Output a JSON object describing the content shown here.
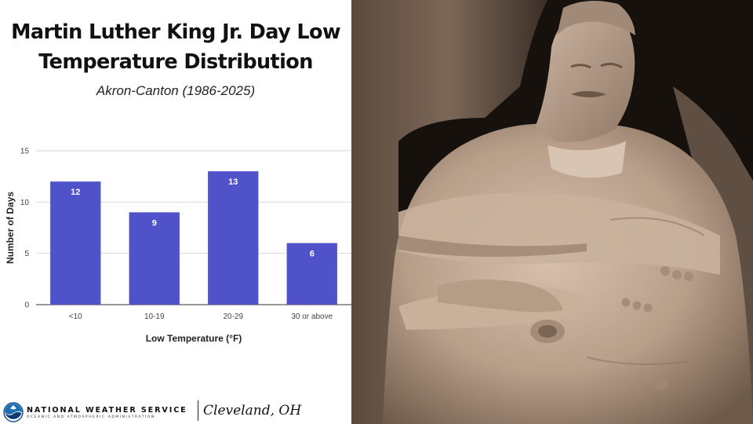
{
  "header": {
    "title_line1": "Martin Luther King Jr. Day Low",
    "title_line2": "Temperature Distribution",
    "subtitle": "Akron-Canton (1986-2025)"
  },
  "chart_data": {
    "type": "bar",
    "categories": [
      "<10",
      "10-19",
      "20-29",
      "30 or above"
    ],
    "values": [
      12,
      9,
      13,
      6
    ],
    "data_labels": [
      "12",
      "9",
      "13",
      "6"
    ],
    "xlabel": "Low Temperature (°F)",
    "ylabel": "Number of Days",
    "ylim": [
      0,
      15
    ],
    "yticks": [
      0,
      5,
      10,
      15
    ],
    "grid": true,
    "bar_color": "#4f52c9",
    "label_color": "#ffffff"
  },
  "image": {
    "subject": "Martin Luther King Jr. Memorial statue",
    "stone_color": "#c2aa95",
    "background_color": "#16110d"
  },
  "footer": {
    "agency": "NATIONAL WEATHER SERVICE",
    "parent_agency": "OCEANIC AND ATMOSPHERIC ADMINISTRATION",
    "office": "Cleveland, OH",
    "logo_icon": "noaa-logo-icon",
    "logo_color": "#1b6fb5"
  }
}
